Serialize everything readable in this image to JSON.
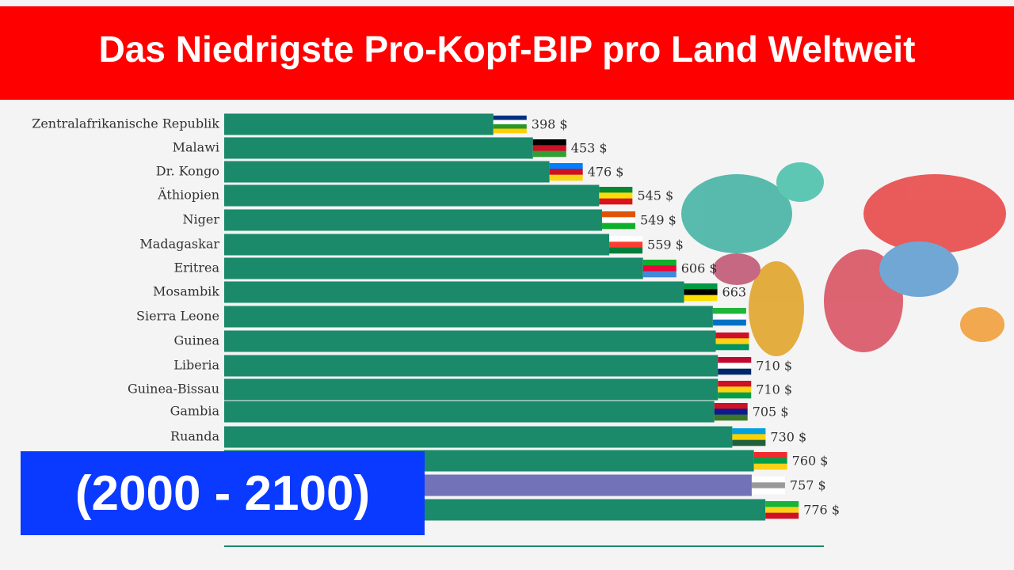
{
  "chart_data": {
    "type": "bar",
    "orientation": "horizontal",
    "title": "Das Niedrigste Pro-Kopf-BIP pro Land Weltweit",
    "subtitle": "(2000 - 2100)",
    "categories": [
      "Zentralafrikanische Republik",
      "Malawi",
      "Dr. Kongo",
      "Äthiopien",
      "Niger",
      "Madagaskar",
      "Eritrea",
      "Mosambik",
      "Sierra Leone",
      "Guinea",
      "Liberia",
      "Guinea-Bissau",
      "Gambia",
      "Ruanda",
      null,
      null,
      null
    ],
    "values": [
      398,
      453,
      476,
      545,
      549,
      559,
      606,
      663,
      703,
      707,
      710,
      710,
      705,
      730,
      760,
      757,
      776
    ],
    "value_labels": [
      "398 $",
      "453 $",
      "476 $",
      "545 $",
      "549 $",
      "559 $",
      "606 $",
      "663",
      null,
      null,
      "710 $",
      "710 $",
      "705 $",
      "730 $",
      "760 $",
      "757 $",
      "776 $"
    ],
    "colors": [
      "#1a8a6a",
      "#1a8a6a",
      "#1a8a6a",
      "#1a8a6a",
      "#1a8a6a",
      "#1a8a6a",
      "#1a8a6a",
      "#1a8a6a",
      "#1a8a6a",
      "#1a8a6a",
      "#1a8a6a",
      "#1a8a6a",
      "#1a8a6a",
      "#1a8a6a",
      "#1a8a6a",
      "#7272b8",
      "#1a8a6a"
    ],
    "xlim": [
      24,
      800
    ]
  }
}
